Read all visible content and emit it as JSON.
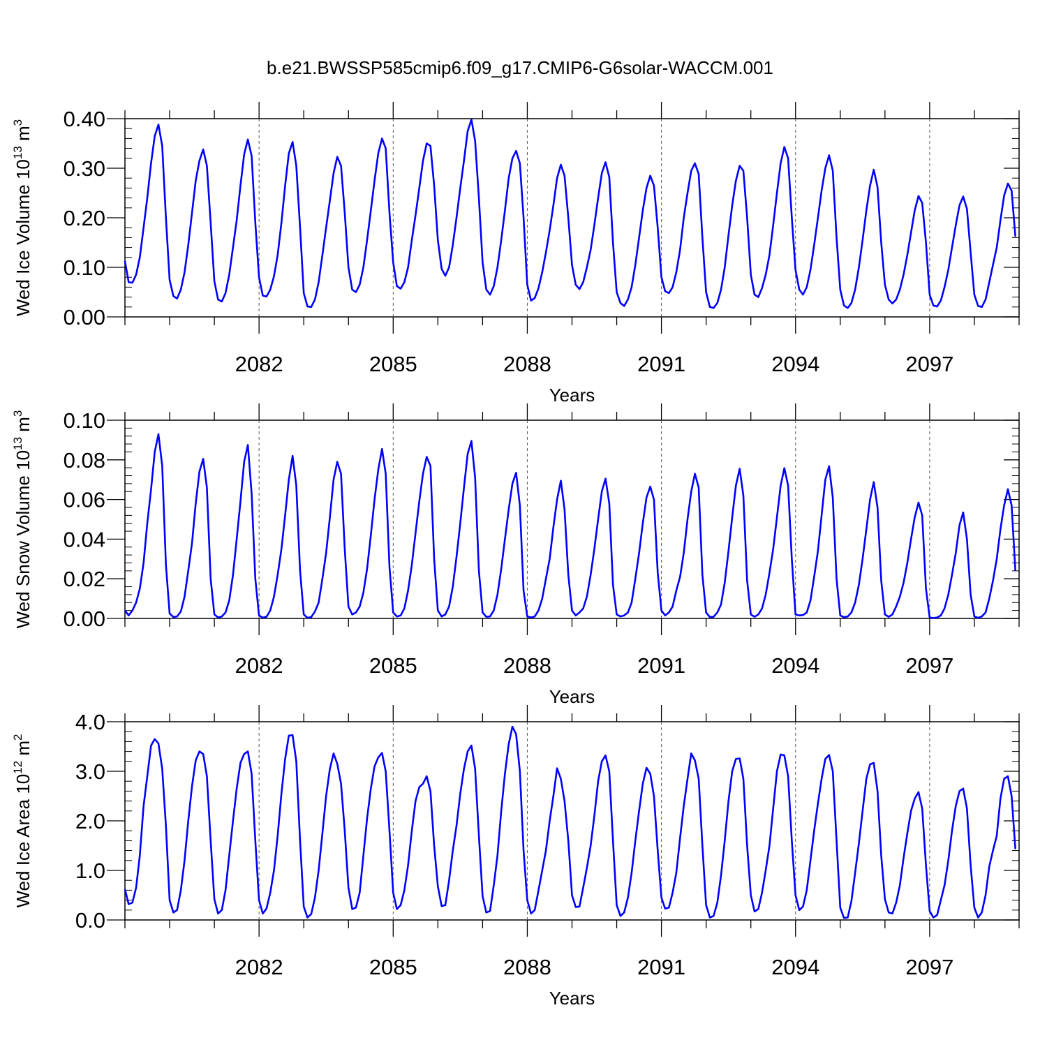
{
  "figure": {
    "title": "b.e21.BWSSP585cmip6.f09_g17.CMIP6-G6solar-WACCM.001",
    "line_color": "#0000ff"
  },
  "chart_data": [
    {
      "type": "line",
      "title": "",
      "xlabel": "Years",
      "ylabel": "Wed Ice Volume 10",
      "ylabel_exponent": "13",
      "ylabel_unit": "m",
      "ylabel_unit_power": "3",
      "xlim": [
        2079.0,
        2099.0
      ],
      "ylim": [
        0.0,
        0.4
      ],
      "xticks": [
        2082,
        2085,
        2088,
        2091,
        2094,
        2097
      ],
      "xtick_labels": [
        "2082",
        "2085",
        "2088",
        "2091",
        "2094",
        "2097"
      ],
      "yticks": [
        0.0,
        0.1,
        0.2,
        0.3,
        0.4
      ],
      "ytick_labels": [
        "0.00",
        "0.10",
        "0.20",
        "0.30",
        "0.40"
      ],
      "grid": "vertical dashed at major x ticks",
      "series": [
        {
          "color": "#0000ff",
          "start_year": 2079.0,
          "step_years": 0.0833333,
          "values": [
            0.113,
            0.07,
            0.069,
            0.085,
            0.12,
            0.18,
            0.24,
            0.31,
            0.365,
            0.388,
            0.345,
            0.2,
            0.075,
            0.042,
            0.037,
            0.055,
            0.09,
            0.145,
            0.21,
            0.275,
            0.315,
            0.338,
            0.305,
            0.19,
            0.072,
            0.035,
            0.031,
            0.048,
            0.085,
            0.14,
            0.195,
            0.265,
            0.328,
            0.358,
            0.325,
            0.19,
            0.08,
            0.043,
            0.041,
            0.055,
            0.082,
            0.125,
            0.19,
            0.265,
            0.33,
            0.353,
            0.305,
            0.18,
            0.048,
            0.021,
            0.02,
            0.035,
            0.07,
            0.125,
            0.18,
            0.235,
            0.29,
            0.323,
            0.305,
            0.21,
            0.1,
            0.055,
            0.05,
            0.065,
            0.1,
            0.155,
            0.215,
            0.275,
            0.33,
            0.36,
            0.34,
            0.21,
            0.11,
            0.062,
            0.057,
            0.07,
            0.1,
            0.155,
            0.205,
            0.26,
            0.315,
            0.35,
            0.345,
            0.265,
            0.155,
            0.097,
            0.083,
            0.1,
            0.145,
            0.2,
            0.26,
            0.315,
            0.375,
            0.398,
            0.355,
            0.24,
            0.11,
            0.055,
            0.045,
            0.062,
            0.1,
            0.155,
            0.215,
            0.28,
            0.32,
            0.335,
            0.31,
            0.2,
            0.065,
            0.033,
            0.038,
            0.058,
            0.09,
            0.13,
            0.175,
            0.225,
            0.28,
            0.307,
            0.285,
            0.2,
            0.105,
            0.065,
            0.056,
            0.07,
            0.1,
            0.135,
            0.185,
            0.24,
            0.29,
            0.312,
            0.282,
            0.15,
            0.05,
            0.028,
            0.022,
            0.035,
            0.06,
            0.105,
            0.16,
            0.215,
            0.26,
            0.285,
            0.265,
            0.18,
            0.08,
            0.052,
            0.048,
            0.06,
            0.09,
            0.135,
            0.2,
            0.25,
            0.295,
            0.31,
            0.288,
            0.16,
            0.05,
            0.02,
            0.018,
            0.028,
            0.055,
            0.1,
            0.165,
            0.225,
            0.275,
            0.305,
            0.295,
            0.2,
            0.085,
            0.045,
            0.04,
            0.058,
            0.085,
            0.125,
            0.185,
            0.25,
            0.31,
            0.343,
            0.32,
            0.2,
            0.095,
            0.055,
            0.045,
            0.06,
            0.095,
            0.145,
            0.2,
            0.255,
            0.3,
            0.326,
            0.295,
            0.16,
            0.055,
            0.023,
            0.018,
            0.028,
            0.055,
            0.1,
            0.155,
            0.215,
            0.265,
            0.297,
            0.262,
            0.15,
            0.065,
            0.035,
            0.027,
            0.035,
            0.055,
            0.085,
            0.125,
            0.17,
            0.215,
            0.244,
            0.23,
            0.15,
            0.045,
            0.023,
            0.021,
            0.033,
            0.06,
            0.095,
            0.14,
            0.185,
            0.225,
            0.243,
            0.218,
            0.13,
            0.045,
            0.022,
            0.02,
            0.035,
            0.07,
            0.105,
            0.14,
            0.195,
            0.245,
            0.269,
            0.255,
            0.162
          ]
        }
      ]
    },
    {
      "type": "line",
      "title": "",
      "xlabel": "Years",
      "ylabel": "Wed Snow Volume 10",
      "ylabel_exponent": "13",
      "ylabel_unit": "m",
      "ylabel_unit_power": "3",
      "xlim": [
        2079.0,
        2099.0
      ],
      "ylim": [
        0.0,
        0.1
      ],
      "xticks": [
        2082,
        2085,
        2088,
        2091,
        2094,
        2097
      ],
      "xtick_labels": [
        "2082",
        "2085",
        "2088",
        "2091",
        "2094",
        "2097"
      ],
      "yticks": [
        0.0,
        0.02,
        0.04,
        0.06,
        0.08,
        0.1
      ],
      "ytick_labels": [
        "0.00",
        "0.02",
        "0.04",
        "0.06",
        "0.08",
        "0.10"
      ],
      "grid": "vertical dashed at major x ticks",
      "series": [
        {
          "color": "#0000ff",
          "start_year": 2079.0,
          "step_years": 0.0833333,
          "values": [
            0.004,
            0.0015,
            0.004,
            0.008,
            0.015,
            0.028,
            0.048,
            0.065,
            0.084,
            0.093,
            0.077,
            0.027,
            0.0025,
            0.0007,
            0.001,
            0.0035,
            0.011,
            0.024,
            0.038,
            0.058,
            0.074,
            0.0805,
            0.066,
            0.02,
            0.002,
            0.0005,
            0.001,
            0.003,
            0.009,
            0.022,
            0.04,
            0.059,
            0.079,
            0.0875,
            0.063,
            0.02,
            0.0015,
            0.0004,
            0.0008,
            0.004,
            0.011,
            0.022,
            0.035,
            0.052,
            0.07,
            0.082,
            0.067,
            0.024,
            0.002,
            0.0003,
            0.0007,
            0.0035,
            0.008,
            0.02,
            0.033,
            0.051,
            0.07,
            0.079,
            0.073,
            0.035,
            0.006,
            0.002,
            0.003,
            0.006,
            0.013,
            0.025,
            0.042,
            0.06,
            0.075,
            0.0855,
            0.073,
            0.026,
            0.003,
            0.001,
            0.0015,
            0.005,
            0.014,
            0.027,
            0.043,
            0.059,
            0.073,
            0.0815,
            0.077,
            0.03,
            0.004,
            0.001,
            0.002,
            0.006,
            0.016,
            0.031,
            0.048,
            0.066,
            0.083,
            0.0895,
            0.071,
            0.024,
            0.003,
            0.0008,
            0.001,
            0.004,
            0.012,
            0.025,
            0.04,
            0.055,
            0.068,
            0.0735,
            0.057,
            0.014,
            0.001,
            0.0005,
            0.001,
            0.004,
            0.01,
            0.02,
            0.03,
            0.046,
            0.06,
            0.0695,
            0.055,
            0.022,
            0.004,
            0.0015,
            0.003,
            0.005,
            0.011,
            0.022,
            0.035,
            0.05,
            0.064,
            0.0705,
            0.058,
            0.017,
            0.002,
            0.001,
            0.0015,
            0.003,
            0.008,
            0.02,
            0.033,
            0.048,
            0.061,
            0.0665,
            0.06,
            0.023,
            0.004,
            0.0015,
            0.003,
            0.006,
            0.014,
            0.021,
            0.033,
            0.05,
            0.064,
            0.073,
            0.066,
            0.022,
            0.003,
            0.0007,
            0.0008,
            0.003,
            0.007,
            0.018,
            0.034,
            0.051,
            0.067,
            0.0755,
            0.062,
            0.019,
            0.002,
            0.0008,
            0.002,
            0.005,
            0.012,
            0.023,
            0.035,
            0.051,
            0.067,
            0.0758,
            0.067,
            0.03,
            0.002,
            0.0015,
            0.0017,
            0.003,
            0.009,
            0.021,
            0.034,
            0.052,
            0.07,
            0.0768,
            0.061,
            0.02,
            0.0015,
            0.0006,
            0.001,
            0.003,
            0.008,
            0.017,
            0.03,
            0.045,
            0.06,
            0.0688,
            0.056,
            0.019,
            0.002,
            0.0008,
            0.002,
            0.006,
            0.011,
            0.018,
            0.028,
            0.04,
            0.051,
            0.0585,
            0.052,
            0.015,
            0.0005,
            0.0002,
            0.0005,
            0.0015,
            0.005,
            0.012,
            0.022,
            0.033,
            0.047,
            0.0535,
            0.04,
            0.012,
            0.001,
            0.0003,
            0.001,
            0.003,
            0.01,
            0.019,
            0.03,
            0.045,
            0.057,
            0.0652,
            0.057,
            0.024
          ]
        }
      ]
    },
    {
      "type": "line",
      "title": "",
      "xlabel": "Years",
      "ylabel": "Wed Ice Area 10",
      "ylabel_exponent": "12",
      "ylabel_unit": "m",
      "ylabel_unit_power": "2",
      "xlim": [
        2079.0,
        2099.0
      ],
      "ylim": [
        0.0,
        4.0
      ],
      "xticks": [
        2082,
        2085,
        2088,
        2091,
        2094,
        2097
      ],
      "xtick_labels": [
        "2082",
        "2085",
        "2088",
        "2091",
        "2094",
        "2097"
      ],
      "yticks": [
        0.0,
        1.0,
        2.0,
        3.0,
        4.0
      ],
      "ytick_labels": [
        "0.0",
        "1.0",
        "2.0",
        "3.0",
        "4.0"
      ],
      "grid": "vertical dashed at major x ticks",
      "series": [
        {
          "color": "#0000ff",
          "start_year": 2079.0,
          "step_years": 0.0833333,
          "values": [
            0.62,
            0.32,
            0.35,
            0.65,
            1.3,
            2.3,
            2.9,
            3.52,
            3.65,
            3.56,
            3.05,
            1.9,
            0.4,
            0.15,
            0.2,
            0.6,
            1.2,
            2.0,
            2.7,
            3.22,
            3.4,
            3.35,
            2.9,
            1.6,
            0.42,
            0.13,
            0.2,
            0.6,
            1.3,
            2.0,
            2.65,
            3.17,
            3.35,
            3.4,
            2.95,
            1.6,
            0.4,
            0.13,
            0.23,
            0.55,
            1.0,
            1.7,
            2.55,
            3.25,
            3.72,
            3.73,
            3.2,
            1.6,
            0.27,
            0.05,
            0.12,
            0.45,
            1.0,
            1.75,
            2.5,
            3.05,
            3.36,
            3.15,
            2.75,
            1.8,
            0.65,
            0.22,
            0.25,
            0.55,
            1.3,
            2.05,
            2.65,
            3.1,
            3.28,
            3.37,
            3.0,
            1.8,
            0.55,
            0.22,
            0.3,
            0.6,
            1.1,
            1.8,
            2.4,
            2.68,
            2.75,
            2.9,
            2.6,
            1.5,
            0.68,
            0.28,
            0.3,
            0.8,
            1.4,
            1.9,
            2.55,
            3.05,
            3.4,
            3.52,
            3.05,
            1.7,
            0.48,
            0.15,
            0.18,
            0.7,
            1.3,
            2.2,
            2.95,
            3.55,
            3.9,
            3.75,
            3.0,
            1.4,
            0.4,
            0.13,
            0.2,
            0.6,
            1.0,
            1.4,
            2.0,
            2.5,
            3.06,
            2.85,
            2.4,
            1.6,
            0.5,
            0.26,
            0.27,
            0.65,
            1.05,
            1.5,
            2.1,
            2.8,
            3.2,
            3.32,
            3.0,
            1.6,
            0.3,
            0.08,
            0.15,
            0.45,
            0.95,
            1.6,
            2.2,
            2.75,
            3.07,
            2.95,
            2.5,
            1.4,
            0.45,
            0.23,
            0.25,
            0.55,
            0.95,
            1.65,
            2.3,
            2.85,
            3.36,
            3.22,
            2.85,
            1.5,
            0.3,
            0.05,
            0.08,
            0.35,
            0.9,
            1.6,
            2.4,
            3.0,
            3.25,
            3.26,
            2.85,
            1.5,
            0.5,
            0.17,
            0.22,
            0.55,
            1.0,
            1.5,
            2.25,
            3.0,
            3.34,
            3.32,
            2.9,
            1.6,
            0.5,
            0.2,
            0.27,
            0.6,
            1.2,
            1.8,
            2.35,
            2.85,
            3.25,
            3.33,
            3.0,
            1.6,
            0.25,
            0.04,
            0.05,
            0.38,
            0.95,
            1.55,
            2.2,
            2.85,
            3.14,
            3.17,
            2.6,
            1.3,
            0.42,
            0.15,
            0.13,
            0.35,
            0.7,
            1.25,
            1.75,
            2.2,
            2.45,
            2.58,
            2.25,
            1.1,
            0.18,
            0.05,
            0.1,
            0.4,
            0.7,
            1.2,
            1.8,
            2.3,
            2.6,
            2.65,
            2.25,
            1.1,
            0.25,
            0.05,
            0.15,
            0.5,
            1.08,
            1.4,
            1.7,
            2.45,
            2.85,
            2.9,
            2.5,
            1.43
          ]
        }
      ]
    }
  ]
}
